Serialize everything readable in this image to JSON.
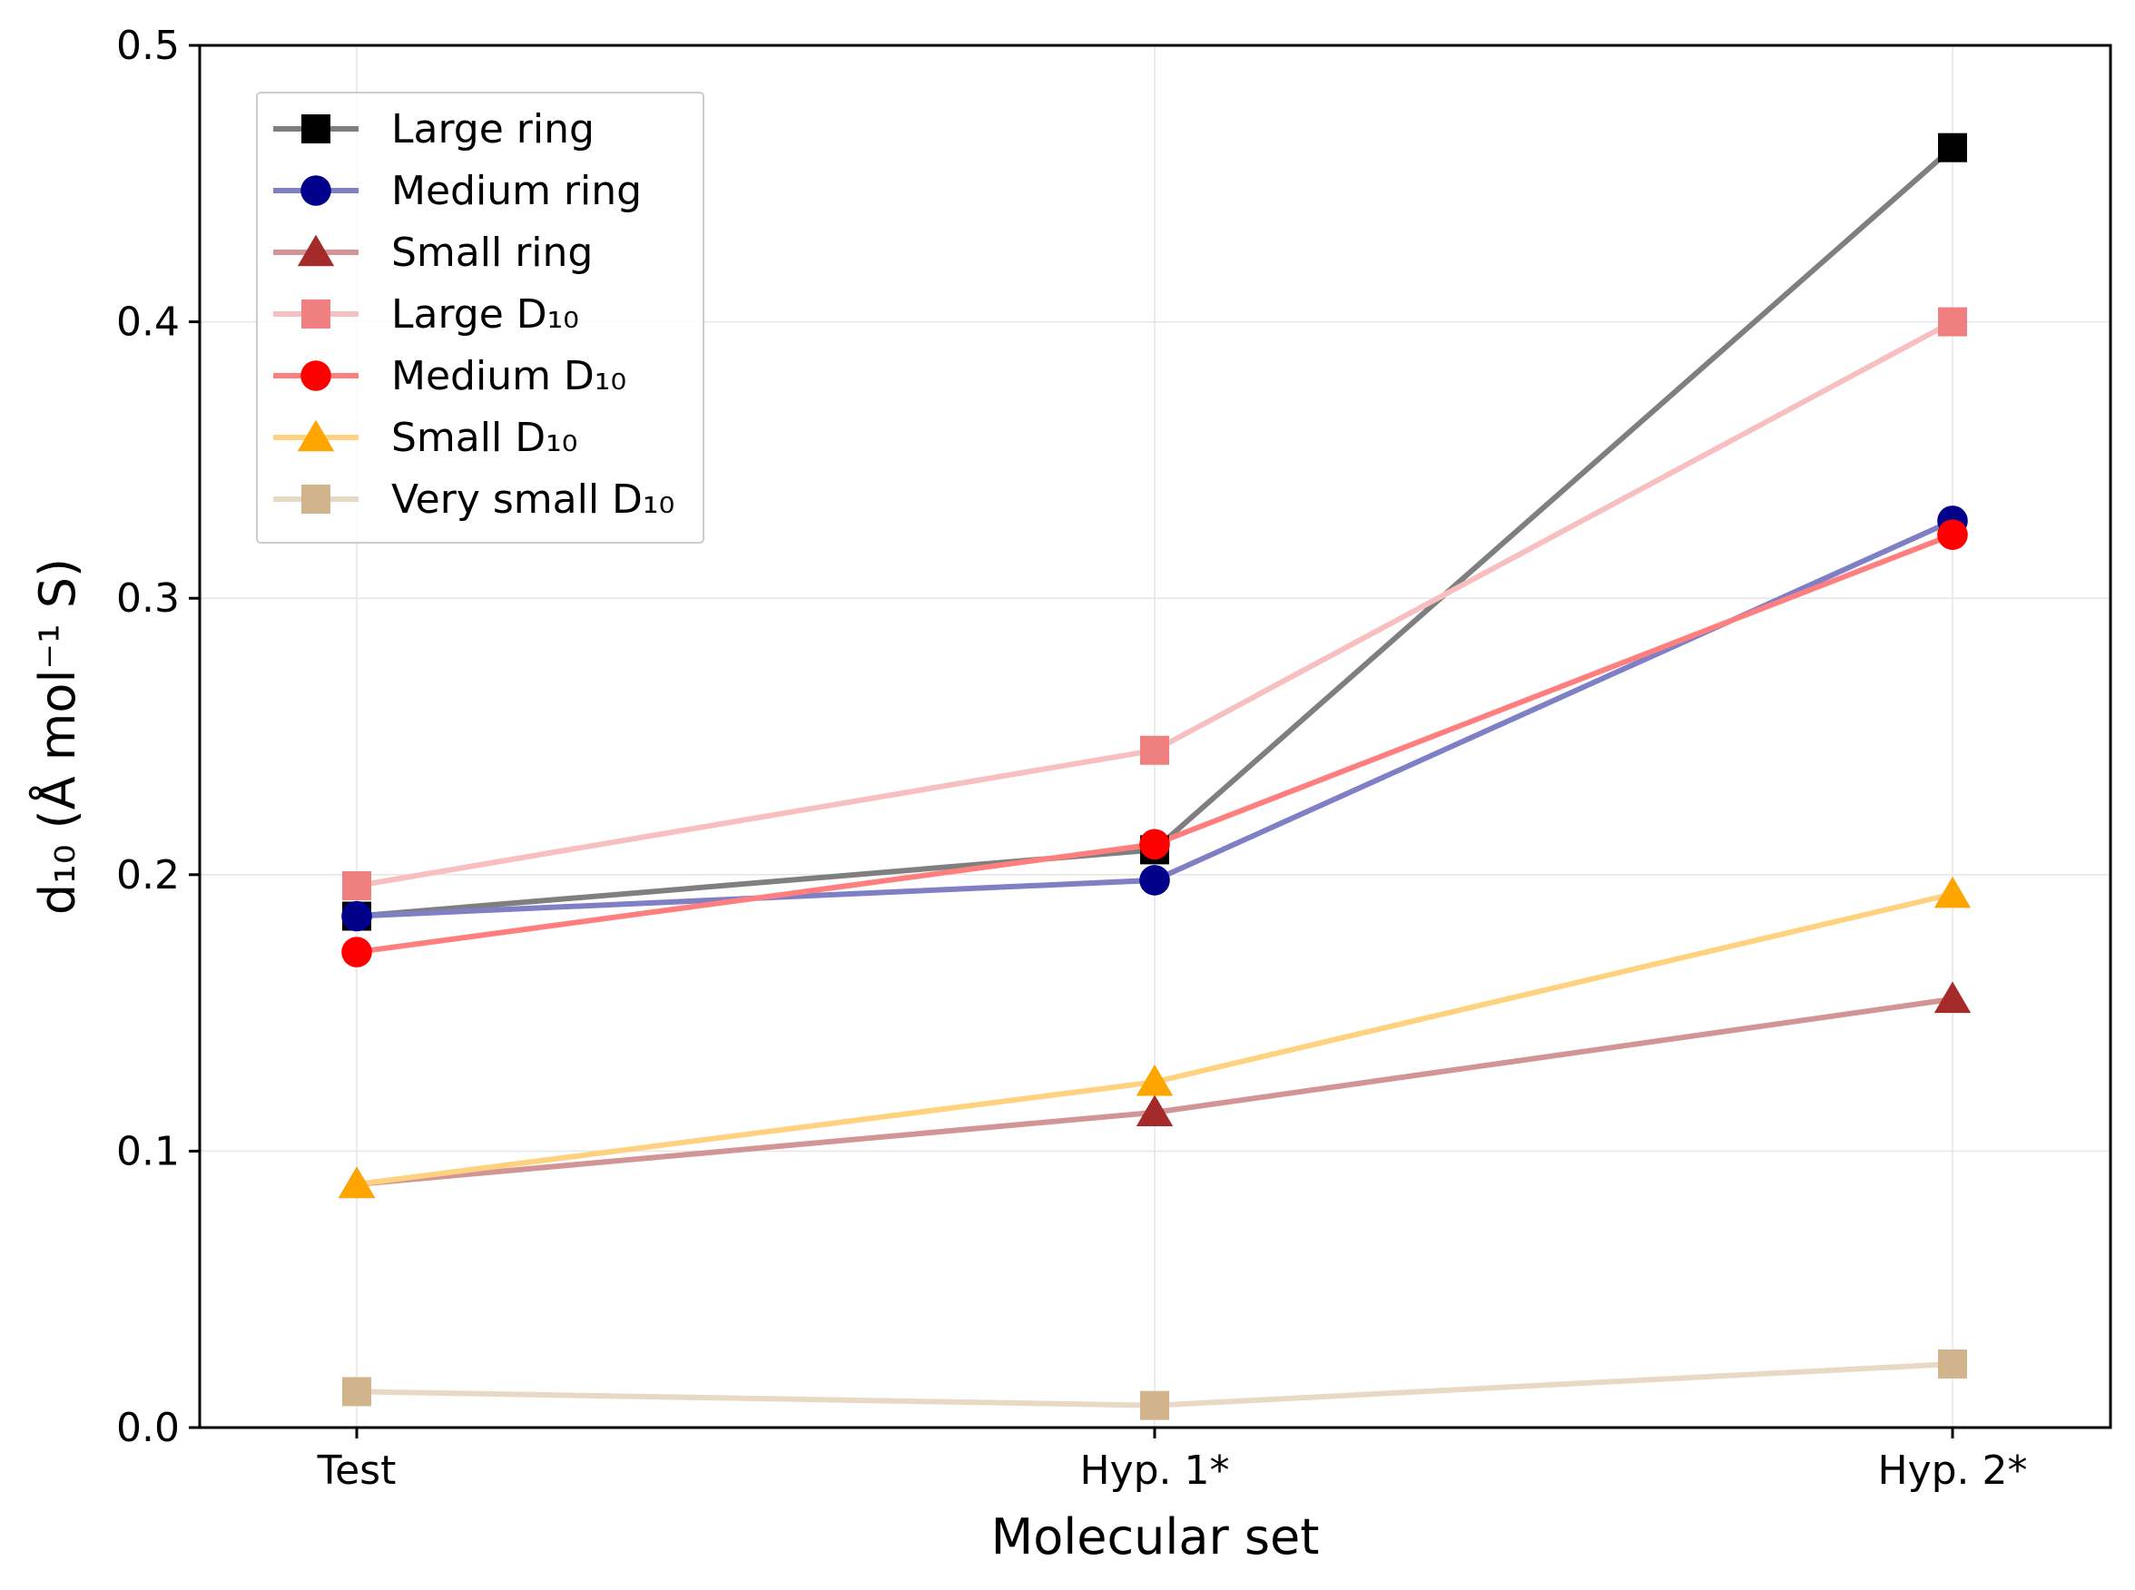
{
  "chart_data": {
    "type": "line",
    "title": "",
    "xlabel": "Molecular set",
    "ylabel": "d₁₀ (Å mol⁻¹ S)",
    "categories": [
      "Test",
      "Hyp. 1*",
      "Hyp. 2*"
    ],
    "ylim": [
      0.0,
      0.5
    ],
    "yticks": [
      "0.0",
      "0.1",
      "0.2",
      "0.3",
      "0.4",
      "0.5"
    ],
    "grid": true,
    "legend_position": "top-left",
    "series": [
      {
        "name": "Large ring",
        "values": [
          0.185,
          0.209,
          0.463
        ],
        "color": "#000000",
        "line_color": "#7f7f7f",
        "marker": "square"
      },
      {
        "name": "Medium ring",
        "values": [
          0.185,
          0.198,
          0.328
        ],
        "color": "#00008b",
        "line_color": "#7f7fc5",
        "marker": "circle"
      },
      {
        "name": "Small ring",
        "values": [
          0.088,
          0.114,
          0.155
        ],
        "color": "#a52a2a",
        "line_color": "#d29494",
        "marker": "triangle"
      },
      {
        "name": "Large D₁₀",
        "values": [
          0.196,
          0.245,
          0.4
        ],
        "color": "#f08080",
        "line_color": "#f7bfbf",
        "marker": "square"
      },
      {
        "name": "Medium D₁₀",
        "values": [
          0.172,
          0.211,
          0.323
        ],
        "color": "#ff0000",
        "line_color": "#ff7f7f",
        "marker": "circle"
      },
      {
        "name": "Small D₁₀",
        "values": [
          0.088,
          0.125,
          0.193
        ],
        "color": "#ffa500",
        "line_color": "#ffd27f",
        "marker": "triangle"
      },
      {
        "name": "Very small D₁₀",
        "values": [
          0.013,
          0.008,
          0.023
        ],
        "color": "#d2b48c",
        "line_color": "#e8d9c5",
        "marker": "square"
      }
    ]
  }
}
